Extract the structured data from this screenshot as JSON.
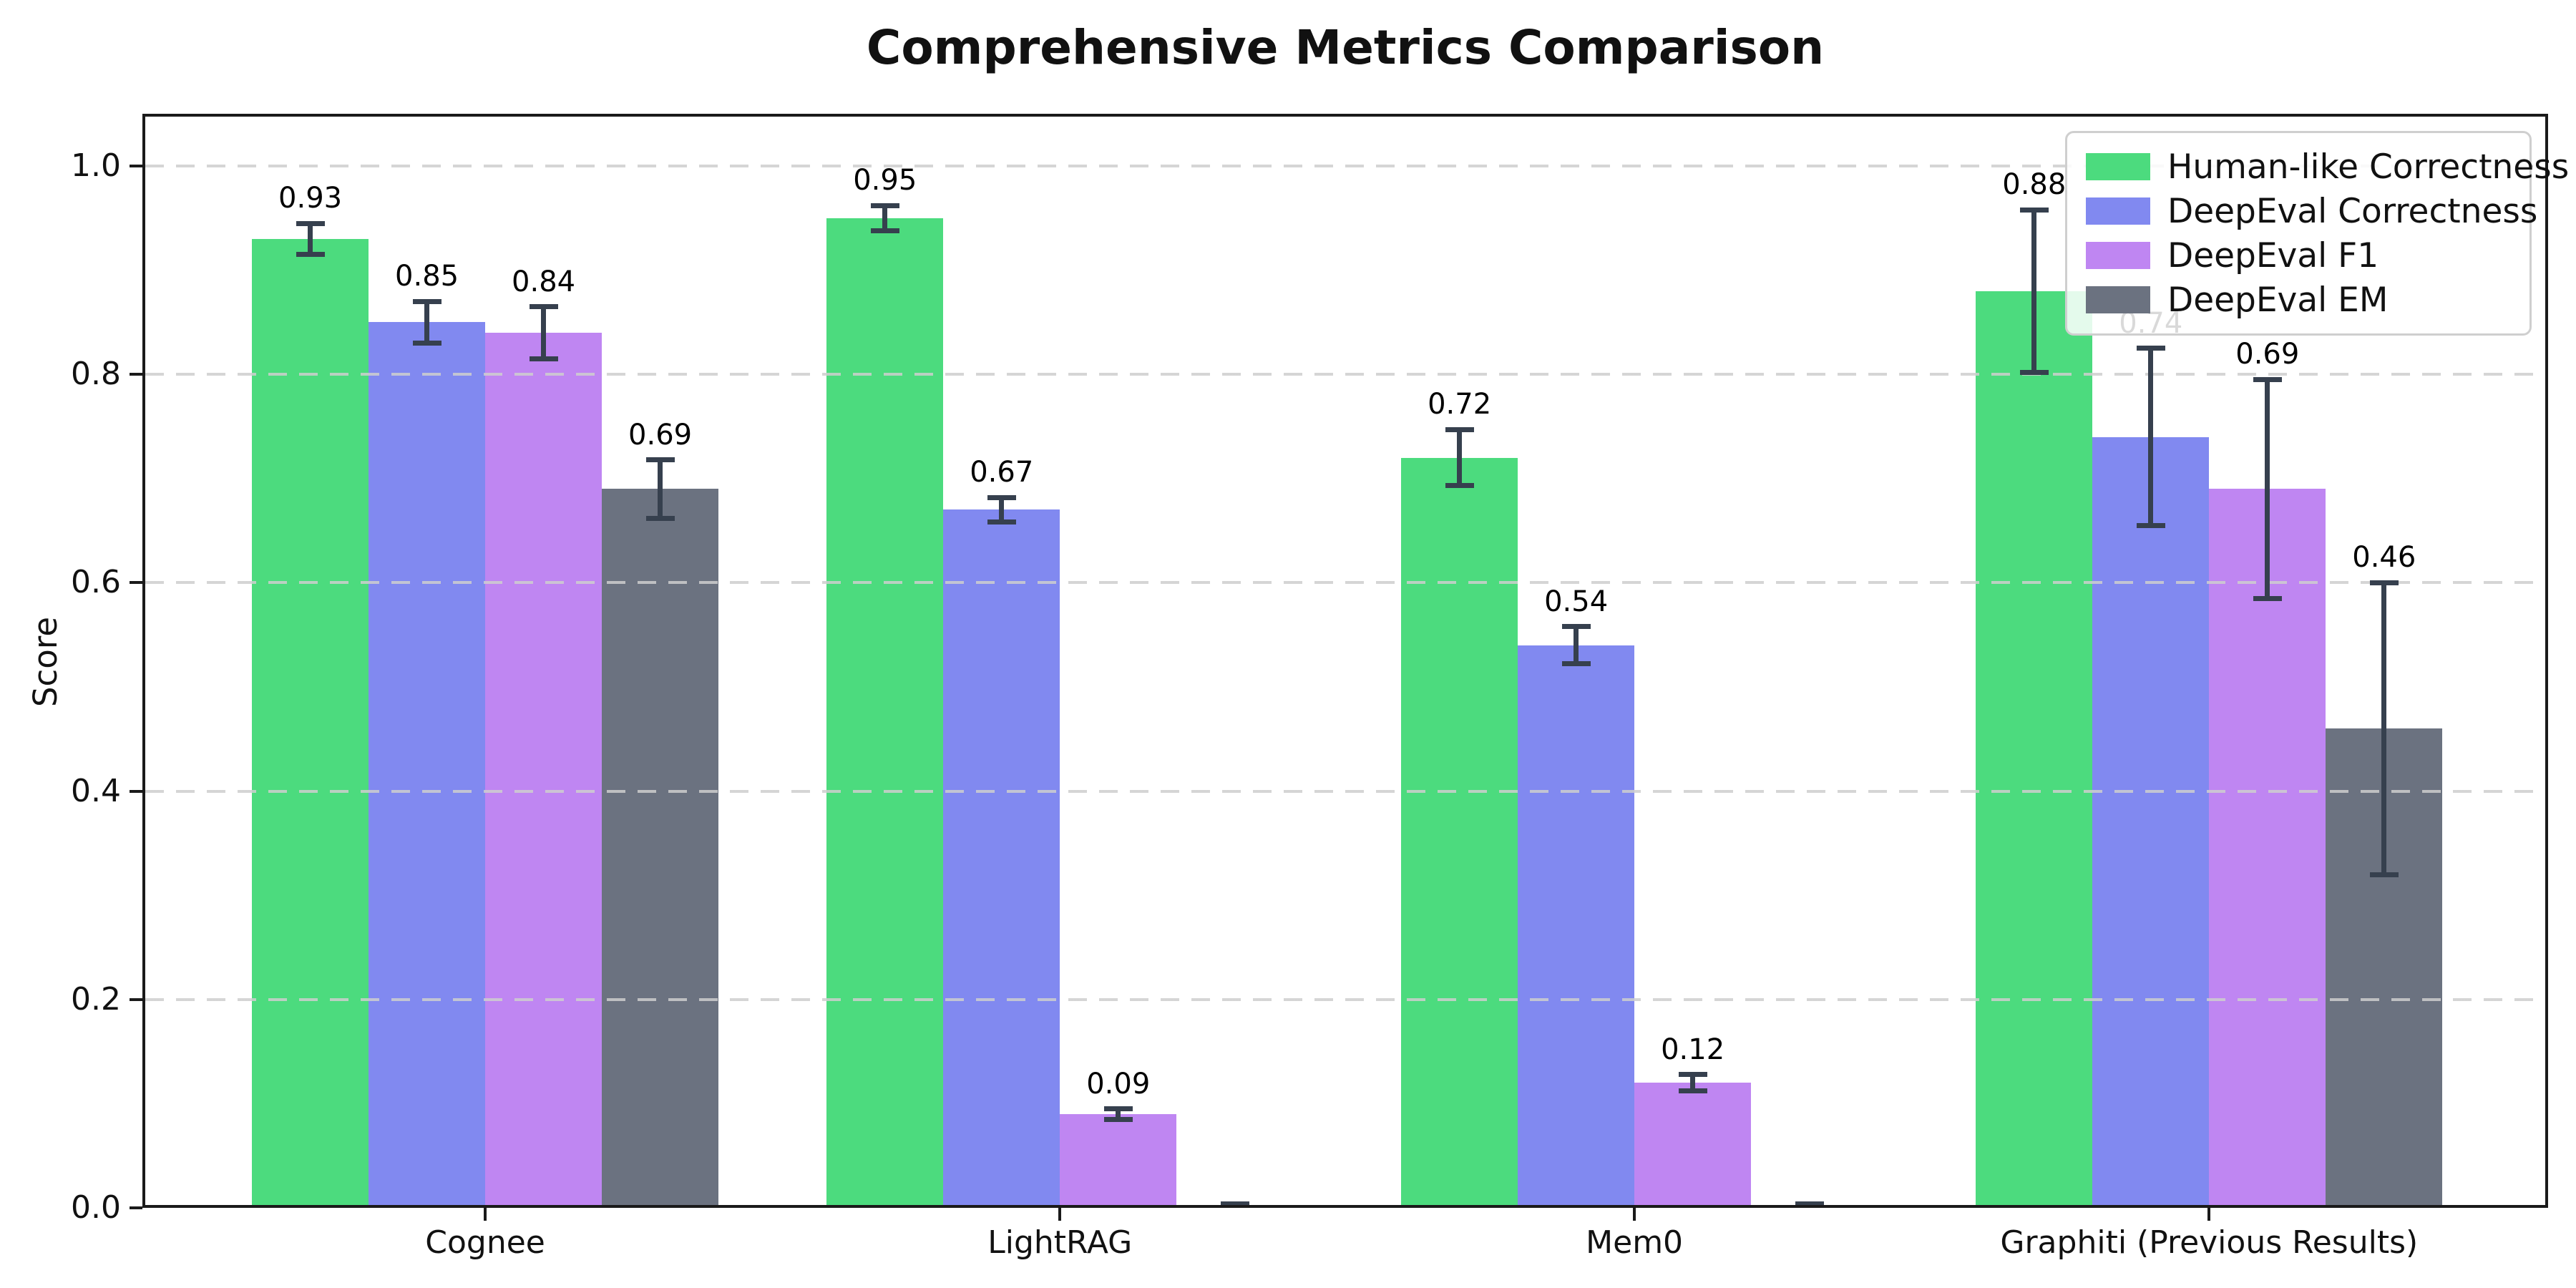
{
  "title": "Comprehensive Metrics Comparison",
  "chart_data": {
    "type": "bar",
    "title": "Comprehensive Metrics Comparison",
    "xlabel": "",
    "ylabel": "Score",
    "ylim": [
      0.0,
      1.045
    ],
    "yticks": [
      0.0,
      0.2,
      0.4,
      0.6,
      0.8,
      1.0
    ],
    "ytick_labels": [
      "0.0",
      "0.2",
      "0.4",
      "0.6",
      "0.8",
      "1.0"
    ],
    "grid": "horizontal dashed",
    "legend_position": "upper right",
    "categories": [
      "Cognee",
      "LightRAG",
      "Mem0",
      "Graphiti (Previous Results)"
    ],
    "series": [
      {
        "name": "Human-like Correctness",
        "color": "#4cdb7e",
        "values": [
          0.93,
          0.95,
          0.72,
          0.88
        ],
        "errors": [
          0.015,
          0.012,
          0.027,
          0.078
        ],
        "labels": [
          "0.93",
          "0.95",
          "0.72",
          "0.88"
        ]
      },
      {
        "name": "DeepEval Correctness",
        "color": "#8189f0",
        "values": [
          0.85,
          0.67,
          0.54,
          0.74
        ],
        "errors": [
          0.02,
          0.012,
          0.018,
          0.085
        ],
        "labels": [
          "0.85",
          "0.67",
          "0.54",
          "0.74"
        ]
      },
      {
        "name": "DeepEval F1",
        "color": "#bf86f2",
        "values": [
          0.84,
          0.09,
          0.12,
          0.69
        ],
        "errors": [
          0.025,
          0.005,
          0.008,
          0.105
        ],
        "labels": [
          "0.84",
          "0.09",
          "0.12",
          "0.69"
        ]
      },
      {
        "name": "DeepEval EM",
        "color": "#6b7280",
        "values": [
          0.69,
          0.0,
          0.0,
          0.46
        ],
        "errors": [
          0.028,
          0.004,
          0.004,
          0.14
        ],
        "labels": [
          "0.69",
          "",
          "",
          "0.46"
        ]
      }
    ],
    "colors": {
      "error_bar": "#36404e",
      "gridline": "#cecece",
      "axis": "#1a1a1a",
      "background": "#ffffff"
    }
  }
}
